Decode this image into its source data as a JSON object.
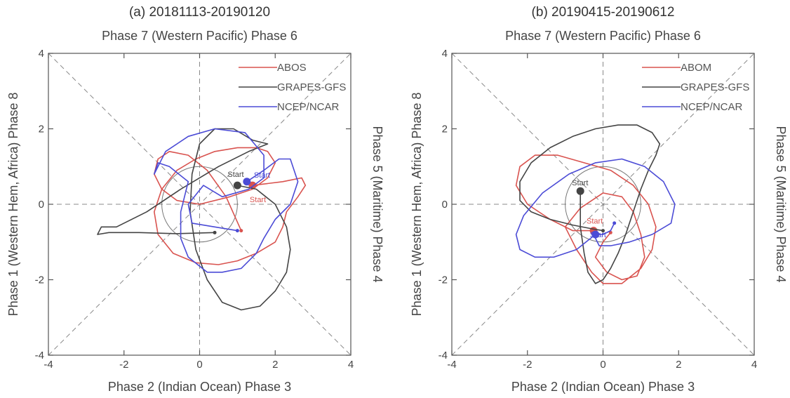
{
  "panels": [
    {
      "id": "a",
      "title": "(a) 20181113-20190120",
      "top_label": "Phase 7 (Western Pacific) Phase 6",
      "bottom_label": "Phase 2 (Indian Ocean) Phase 3",
      "left_label": "Phase 1 (Western Hem, Africa) Phase 8",
      "right_label": "Phase 5 (Maritime) Phase 4",
      "legend": [
        "ABOS",
        "GRAPES-GFS",
        "NCEP/NCAR"
      ],
      "start_label": "Start"
    },
    {
      "id": "b",
      "title": "(b) 20190415-20190612",
      "top_label": "Phase 7 (Western Pacific) Phase 6",
      "bottom_label": "Phase 2 (Indian Ocean) Phase 3",
      "left_label": "Phase 1 (Western Hem, Africa) Phase 8",
      "right_label": "Phase 5 (Maritime) Phase 4",
      "legend": [
        "ABOM",
        "GRAPES-GFS",
        "NCEP/NCAR"
      ],
      "start_label": "Start"
    }
  ],
  "chart_data": [
    {
      "type": "line",
      "title": "(a) 20181113-20190120",
      "xlabel": "Phase 2 (Indian Ocean) Phase 3",
      "ylabel": "Phase 1 (Western Hem, Africa) Phase 8",
      "xlim": [
        -4,
        4
      ],
      "ylim": [
        -4,
        4
      ],
      "xticks": [
        -4,
        -2,
        0,
        2,
        4
      ],
      "yticks": [
        -4,
        -2,
        0,
        2,
        4
      ],
      "tick_labels": [
        "-4",
        "-2",
        "0",
        "2",
        "4"
      ],
      "reference": {
        "unit_circle_radius": 1,
        "diagonals": true,
        "zero_lines": true
      },
      "colors": {
        "ABOS": "#d9534f",
        "GRAPES-GFS": "#444444",
        "NCEP/NCAR": "#4b4bd6"
      },
      "series": [
        {
          "name": "ABOS",
          "start": [
            1.4,
            0.5
          ],
          "x": [
            1.4,
            2.2,
            2.7,
            2.8,
            2.6,
            2.3,
            2.2,
            2.0,
            1.5,
            1.0,
            0.5,
            -0.1,
            -0.7,
            -1.1,
            -1.2,
            -1.0,
            -0.6,
            -0.1,
            0.4,
            1.0,
            1.5,
            1.8,
            2.0,
            1.8,
            1.4,
            0.8,
            0.0,
            -0.6,
            -1.0,
            -1.2,
            -1.1,
            -0.8,
            -0.3,
            0.2,
            0.7,
            1.1
          ],
          "y": [
            0.5,
            0.6,
            0.7,
            0.5,
            0.2,
            -0.2,
            -0.6,
            -1.0,
            -1.3,
            -1.5,
            -1.6,
            -1.55,
            -1.3,
            -0.8,
            -0.2,
            0.4,
            0.9,
            1.2,
            1.4,
            1.5,
            1.5,
            1.4,
            1.1,
            0.7,
            0.4,
            0.2,
            0.0,
            0.1,
            0.4,
            0.8,
            1.2,
            1.4,
            1.3,
            0.9,
            0.2,
            -0.7
          ]
        },
        {
          "name": "GRAPES-GFS",
          "start": [
            1.0,
            0.5
          ],
          "x": [
            1.0,
            1.5,
            2.0,
            2.3,
            2.4,
            2.3,
            2.0,
            1.6,
            1.1,
            0.6,
            0.2,
            -0.1,
            -0.25,
            -0.2,
            0.0,
            0.4,
            0.9,
            1.4,
            1.8,
            1.3,
            0.5,
            -0.5,
            -1.4,
            -2.2,
            -2.6,
            -2.7,
            -2.4,
            -1.6,
            -0.6,
            0.4
          ],
          "y": [
            0.5,
            0.4,
            0.0,
            -0.6,
            -1.2,
            -1.8,
            -2.3,
            -2.7,
            -2.8,
            -2.6,
            -2.0,
            -1.2,
            -0.2,
            0.8,
            1.6,
            2.0,
            2.0,
            1.7,
            1.6,
            1.4,
            1.0,
            0.4,
            -0.2,
            -0.6,
            -0.6,
            -0.8,
            -0.75,
            -0.75,
            -0.78,
            -0.75
          ]
        },
        {
          "name": "NCEP/NCAR",
          "start": [
            1.25,
            0.6
          ],
          "x": [
            1.25,
            1.7,
            2.1,
            2.4,
            2.6,
            2.4,
            2.0,
            1.7,
            1.5,
            1.1,
            0.6,
            0.2,
            -0.3,
            -0.5,
            -0.5,
            -0.3,
            -0.8,
            -1.1,
            -1.2,
            -0.9,
            -0.3,
            0.4,
            1.2,
            1.7,
            1.7,
            1.3,
            0.6,
            0.1,
            -0.3,
            -0.2,
            0.4,
            1.0
          ],
          "y": [
            0.6,
            0.9,
            1.2,
            1.2,
            0.6,
            0.0,
            -0.4,
            -0.9,
            -1.3,
            -1.7,
            -1.8,
            -1.8,
            -1.4,
            -0.9,
            -0.2,
            0.6,
            1.0,
            1.1,
            0.8,
            1.4,
            1.8,
            2.0,
            1.9,
            1.3,
            0.7,
            0.4,
            0.2,
            0.5,
            0.0,
            -0.5,
            -0.6,
            -0.7
          ]
        }
      ]
    },
    {
      "type": "line",
      "title": "(b) 20190415-20190612",
      "xlabel": "Phase 2 (Indian Ocean) Phase 3",
      "ylabel": "Phase 1 (Western Hem, Africa) Phase 8",
      "xlim": [
        -4,
        4
      ],
      "ylim": [
        -4,
        4
      ],
      "xticks": [
        -4,
        -2,
        0,
        2,
        4
      ],
      "yticks": [
        -4,
        -2,
        0,
        2,
        4
      ],
      "tick_labels": [
        "-4",
        "-2",
        "0",
        "2",
        "4"
      ],
      "reference": {
        "unit_circle_radius": 1,
        "diagonals": true,
        "zero_lines": true
      },
      "colors": {
        "ABOM": "#d9534f",
        "GRAPES-GFS": "#444444",
        "NCEP/NCAR": "#4b4bd6"
      },
      "series": [
        {
          "name": "ABOM",
          "start": [
            -0.25,
            -0.7
          ],
          "x": [
            -0.25,
            -0.8,
            -1.4,
            -2.0,
            -2.3,
            -2.2,
            -1.8,
            -1.2,
            -0.5,
            0.2,
            0.8,
            1.2,
            1.4,
            1.3,
            1.0,
            0.5,
            0.0,
            -0.3,
            -0.7,
            -1.0,
            -0.6,
            0.0,
            0.5,
            0.8,
            1.0,
            1.1,
            0.9,
            0.5,
            0.1,
            -0.2,
            0.0,
            0.2
          ],
          "y": [
            -0.7,
            -0.7,
            -0.4,
            0.0,
            0.5,
            1.0,
            1.3,
            1.3,
            1.1,
            0.9,
            0.5,
            0.0,
            -0.6,
            -1.2,
            -1.7,
            -2.1,
            -2.1,
            -1.8,
            -1.2,
            -0.6,
            -0.1,
            0.3,
            0.2,
            -0.2,
            -0.8,
            -1.4,
            -1.9,
            -2.0,
            -1.8,
            -1.4,
            -1.0,
            -0.75
          ]
        },
        {
          "name": "GRAPES-GFS",
          "start": [
            -0.6,
            0.35
          ],
          "x": [
            -0.6,
            -0.6,
            -0.5,
            -0.4,
            -0.2,
            0.0,
            0.2,
            0.4,
            0.6,
            0.8,
            1.0,
            1.2,
            1.4,
            1.5,
            1.3,
            0.9,
            0.4,
            -0.2,
            -0.8,
            -1.4,
            -1.9,
            -2.2,
            -2.2,
            -1.9,
            -1.4,
            -0.8,
            -0.3,
            0.0
          ],
          "y": [
            0.35,
            -0.6,
            -1.3,
            -1.8,
            -2.1,
            -2.0,
            -1.7,
            -1.3,
            -0.8,
            -0.2,
            0.4,
            0.9,
            1.3,
            1.6,
            1.9,
            2.1,
            2.1,
            2.0,
            1.8,
            1.5,
            1.1,
            0.6,
            0.1,
            -0.2,
            -0.4,
            -0.55,
            -0.65,
            -0.7
          ]
        },
        {
          "name": "NCEP/NCAR",
          "start": [
            -0.2,
            -0.8
          ],
          "x": [
            -0.2,
            -0.7,
            -1.3,
            -1.8,
            -2.2,
            -2.3,
            -2.1,
            -1.6,
            -0.9,
            -0.2,
            0.5,
            1.1,
            1.6,
            1.9,
            1.8,
            1.3,
            0.7,
            0.2,
            -0.1,
            -0.2,
            -0.2,
            0.0,
            0.2,
            0.3
          ],
          "y": [
            -0.8,
            -1.2,
            -1.4,
            -1.4,
            -1.2,
            -0.8,
            -0.3,
            0.3,
            0.8,
            1.1,
            1.2,
            1.0,
            0.6,
            0.0,
            -0.5,
            -0.8,
            -1.0,
            -1.1,
            -1.1,
            -0.9,
            -0.8,
            -0.8,
            -0.7,
            -0.5
          ]
        }
      ]
    }
  ]
}
